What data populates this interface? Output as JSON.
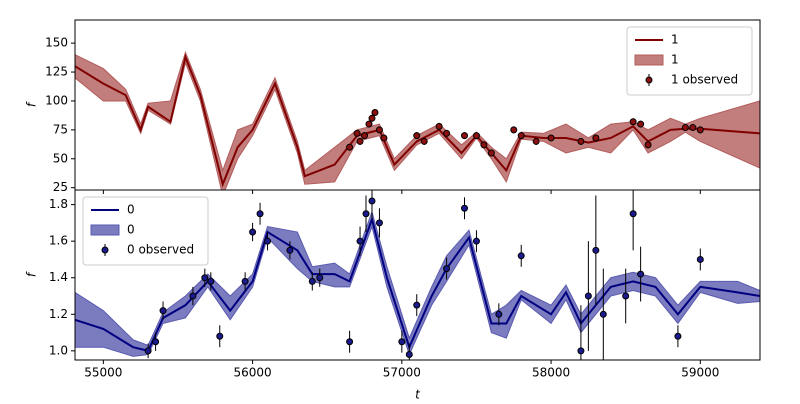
{
  "chart_data": [
    {
      "type": "line",
      "ylabel": "f",
      "legend": "upper right",
      "grid": false,
      "xlim": [
        54810,
        59400
      ],
      "ylim": [
        23,
        170
      ],
      "yticks": [
        25,
        50,
        75,
        100,
        125,
        150
      ],
      "xticks": [
        55000,
        56000,
        57000,
        58000,
        59000
      ],
      "x": [
        54810,
        55000,
        55150,
        55250,
        55300,
        55450,
        55550,
        55650,
        55800,
        55900,
        56000,
        56150,
        56300,
        56350,
        56550,
        56700,
        56850,
        56950,
        57100,
        57250,
        57400,
        57500,
        57600,
        57700,
        57800,
        57950,
        58100,
        58250,
        58400,
        58550,
        58650,
        58800,
        58900,
        59000,
        59400
      ],
      "series": [
        {
          "name": "1",
          "color": "#800000",
          "values": [
            130,
            115,
            105,
            75,
            95,
            82,
            138,
            105,
            28,
            60,
            75,
            115,
            60,
            35,
            45,
            70,
            75,
            45,
            65,
            75,
            55,
            70,
            55,
            40,
            70,
            68,
            68,
            64,
            68,
            78,
            65,
            75,
            76,
            76,
            72
          ]
        }
      ],
      "band": {
        "name": "1",
        "color": "#b35c5c",
        "lower": [
          120,
          100,
          100,
          72,
          92,
          80,
          133,
          100,
          18,
          50,
          70,
          110,
          55,
          28,
          30,
          65,
          70,
          40,
          62,
          72,
          50,
          68,
          50,
          30,
          67,
          65,
          55,
          60,
          55,
          75,
          55,
          65,
          73,
          65,
          42
        ],
        "upper": [
          140,
          128,
          110,
          80,
          98,
          100,
          142,
          110,
          40,
          75,
          80,
          120,
          65,
          40,
          60,
          75,
          80,
          50,
          70,
          80,
          62,
          73,
          60,
          50,
          73,
          72,
          80,
          68,
          80,
          82,
          75,
          85,
          80,
          85,
          100
        ]
      },
      "observed": {
        "name": "1 observed",
        "color": "#8b1010",
        "x": [
          56650,
          56700,
          56720,
          56750,
          56780,
          56800,
          56820,
          56850,
          56880,
          57100,
          57150,
          57250,
          57300,
          57420,
          57500,
          57550,
          57600,
          57750,
          57800,
          57900,
          58000,
          58200,
          58300,
          58550,
          58600,
          58650,
          58900,
          58950,
          59000
        ],
        "values": [
          60,
          72,
          65,
          70,
          80,
          85,
          90,
          75,
          68,
          70,
          65,
          78,
          72,
          70,
          70,
          62,
          55,
          75,
          70,
          65,
          68,
          65,
          68,
          82,
          80,
          62,
          77,
          77,
          75
        ],
        "errors": [
          3,
          3,
          3,
          3,
          3,
          3,
          3,
          3,
          3,
          3,
          3,
          3,
          3,
          3,
          3,
          3,
          3,
          3,
          3,
          3,
          3,
          3,
          3,
          3,
          3,
          3,
          3,
          3,
          3
        ]
      }
    },
    {
      "type": "line",
      "ylabel": "f",
      "xlabel": "t",
      "legend": "upper left",
      "grid": false,
      "xlim": [
        54810,
        59400
      ],
      "ylim": [
        0.95,
        1.88
      ],
      "xticks": [
        55000,
        56000,
        57000,
        58000,
        59000
      ],
      "yticks": [
        {
          "value": 1,
          "label": "1.0"
        },
        1.2,
        1.4,
        1.6,
        1.8
      ],
      "x": [
        54810,
        55000,
        55200,
        55300,
        55400,
        55550,
        55700,
        55850,
        56000,
        56100,
        56300,
        56400,
        56550,
        56650,
        56800,
        56900,
        57050,
        57200,
        57300,
        57450,
        57600,
        57700,
        57800,
        58000,
        58100,
        58200,
        58300,
        58400,
        58550,
        58700,
        58850,
        59000,
        59250,
        59400
      ],
      "series": [
        {
          "name": "0",
          "color": "#000080",
          "values": [
            1.17,
            1.12,
            1.02,
            1.0,
            1.18,
            1.25,
            1.38,
            1.22,
            1.38,
            1.65,
            1.55,
            1.42,
            1.42,
            1.38,
            1.72,
            1.4,
            1.02,
            1.3,
            1.45,
            1.62,
            1.15,
            1.15,
            1.3,
            1.2,
            1.32,
            1.15,
            1.25,
            1.35,
            1.38,
            1.35,
            1.2,
            1.35,
            1.32,
            1.3
          ]
        }
      ],
      "band": {
        "name": "0",
        "color": "#5a5ab0",
        "lower": [
          1.02,
          1.02,
          0.97,
          0.98,
          1.15,
          1.18,
          1.35,
          1.17,
          1.35,
          1.62,
          1.45,
          1.38,
          1.35,
          1.35,
          1.68,
          1.35,
          0.98,
          1.25,
          1.38,
          1.58,
          1.1,
          1.07,
          1.28,
          1.15,
          1.28,
          1.1,
          1.2,
          1.3,
          1.33,
          1.3,
          1.15,
          1.32,
          1.26,
          1.27
        ],
        "upper": [
          1.32,
          1.22,
          1.06,
          1.03,
          1.21,
          1.3,
          1.42,
          1.3,
          1.42,
          1.68,
          1.65,
          1.46,
          1.48,
          1.42,
          1.76,
          1.46,
          1.07,
          1.35,
          1.52,
          1.66,
          1.2,
          1.25,
          1.33,
          1.25,
          1.36,
          1.2,
          1.3,
          1.4,
          1.43,
          1.4,
          1.25,
          1.38,
          1.38,
          1.33
        ]
      },
      "observed": {
        "name": "0 observed",
        "color": "#1a1a8c",
        "x": [
          55300,
          55350,
          55400,
          55600,
          55680,
          55720,
          55780,
          55950,
          56000,
          56050,
          56100,
          56250,
          56400,
          56450,
          56650,
          56720,
          56760,
          56800,
          56850,
          57000,
          57050,
          57100,
          57300,
          57420,
          57500,
          57650,
          57800,
          58200,
          58250,
          58300,
          58350,
          58500,
          58550,
          58600,
          58850,
          59000
        ],
        "values": [
          1.0,
          1.05,
          1.22,
          1.3,
          1.4,
          1.38,
          1.08,
          1.38,
          1.65,
          1.75,
          1.6,
          1.55,
          1.38,
          1.4,
          1.05,
          1.6,
          1.75,
          1.82,
          1.7,
          1.05,
          0.98,
          1.25,
          1.45,
          1.78,
          1.6,
          1.2,
          1.52,
          1.0,
          1.3,
          1.55,
          1.2,
          1.3,
          1.75,
          1.42,
          1.08,
          1.5
        ],
        "errors": [
          0.04,
          0.05,
          0.05,
          0.05,
          0.05,
          0.05,
          0.06,
          0.05,
          0.05,
          0.06,
          0.05,
          0.05,
          0.05,
          0.05,
          0.06,
          0.08,
          0.1,
          0.1,
          0.08,
          0.06,
          0.06,
          0.06,
          0.06,
          0.06,
          0.06,
          0.06,
          0.06,
          0.25,
          0.3,
          0.3,
          0.25,
          0.15,
          0.2,
          0.15,
          0.06,
          0.06
        ]
      }
    }
  ]
}
